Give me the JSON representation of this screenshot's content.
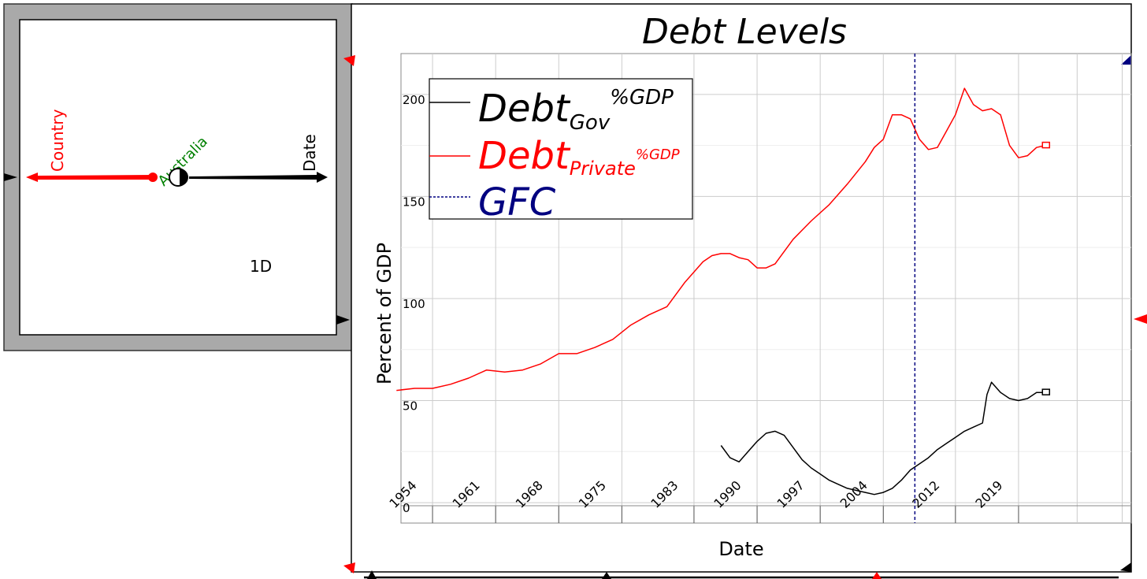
{
  "ravel": {
    "label_1d": "1D",
    "axes": [
      {
        "name": "Country",
        "color": "#ff0000",
        "slice": "Australia"
      },
      {
        "name": "Date",
        "color": "#000000"
      }
    ],
    "slice_color": "#008000"
  },
  "chart_data": {
    "type": "line",
    "title": "Debt Levels",
    "xlabel": "Date",
    "ylabel": "Percent of GDP",
    "x_ticks": [
      "1954",
      "1961",
      "1968",
      "1975",
      "1983",
      "1990",
      "1997",
      "2004",
      "2012",
      "2019"
    ],
    "y_ticks": [
      "0",
      "50",
      "100",
      "150",
      "200"
    ],
    "xlim": [
      1951,
      2032
    ],
    "ylim": [
      -10,
      220
    ],
    "grid": true,
    "legend_position": "top-left",
    "series": [
      {
        "name_main": "Debt",
        "name_sub": "Gov",
        "name_sup": "%GDP",
        "color": "#000000",
        "x": [
          1986.5,
          1987.5,
          1988.5,
          1989.5,
          1990.5,
          1991.5,
          1992.5,
          1993.5,
          1994.5,
          1995.5,
          1996.5,
          1997.5,
          1998.5,
          1999.5,
          2000.5,
          2001.5,
          2002.5,
          2003.5,
          2004.5,
          2005.5,
          2006.5,
          2007.5,
          2008.5,
          2009.5,
          2010.5,
          2011.5,
          2012.5,
          2013.5,
          2014.5,
          2015.5,
          2016,
          2016.5,
          2017.5,
          2018.5,
          2019.5,
          2020.5,
          2021.5,
          2022.5
        ],
        "y": [
          28,
          22,
          20,
          25,
          30,
          34,
          35,
          33,
          27,
          21,
          17,
          14,
          11,
          9,
          7,
          6,
          5,
          4,
          5,
          7,
          11,
          16,
          19,
          22,
          26,
          29,
          32,
          35,
          37,
          39,
          53,
          59,
          54,
          51,
          50,
          51,
          54,
          54
        ]
      },
      {
        "name_main": "Debt",
        "name_sub": "Private",
        "name_sup": "%GDP",
        "color": "#ff0000",
        "x": [
          1950.5,
          1952.5,
          1954.5,
          1956.5,
          1958.5,
          1960.5,
          1962.5,
          1964.5,
          1966.5,
          1968.5,
          1970.5,
          1972.5,
          1974.5,
          1976.5,
          1978.5,
          1980.5,
          1982.5,
          1984.5,
          1985.5,
          1986.5,
          1987.5,
          1988.5,
          1989.5,
          1990.5,
          1991.5,
          1992.5,
          1994.5,
          1996.5,
          1998.5,
          2000.5,
          2002.5,
          2003.5,
          2004.5,
          2005.5,
          2006.5,
          2007.5,
          2008.5,
          2009.5,
          2010.5,
          2011.5,
          2012.5,
          2013.5,
          2014.5,
          2015.5,
          2016.5,
          2017.5,
          2018.5,
          2019.5,
          2020.5,
          2021.5,
          2022.5
        ],
        "y": [
          55,
          56,
          56,
          58,
          61,
          65,
          64,
          65,
          68,
          73,
          73,
          76,
          80,
          87,
          92,
          96,
          108,
          118,
          121,
          122,
          122,
          120,
          119,
          115,
          115,
          117,
          129,
          138,
          146,
          156,
          167,
          174,
          178,
          190,
          190,
          188,
          178,
          173,
          174,
          182,
          190,
          203,
          195,
          192,
          193,
          190,
          175,
          169,
          170,
          174,
          175
        ]
      },
      {
        "name_main": "GFC",
        "color": "#000080",
        "style": "dashed",
        "x_value": 2008
      }
    ]
  }
}
